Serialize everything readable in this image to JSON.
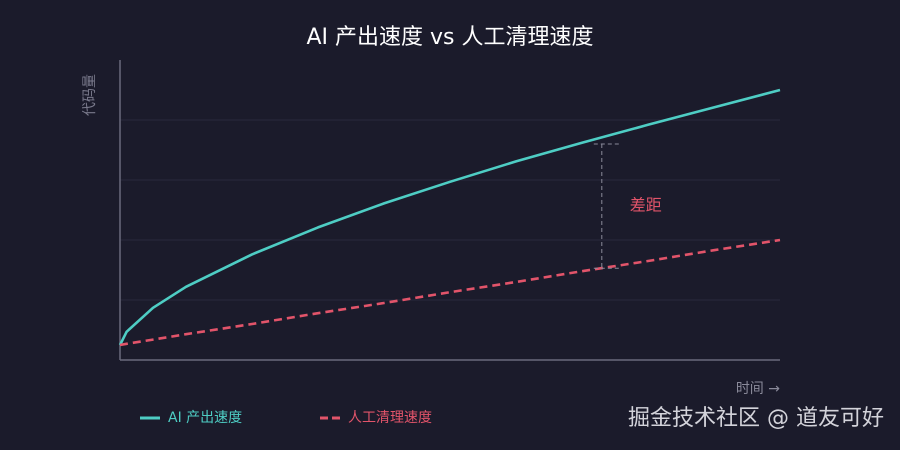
{
  "chart_data": {
    "type": "line",
    "title": "AI 产出速度 vs 人工清理速度",
    "xlabel": "时间 →",
    "ylabel": "代码量",
    "x": [
      0,
      0.1,
      0.5,
      1,
      2,
      3,
      4,
      5,
      6,
      7,
      8,
      9,
      10
    ],
    "xlim": [
      0,
      10
    ],
    "ylim": [
      0,
      5
    ],
    "gridlines": [
      1,
      2,
      3,
      4
    ],
    "series": [
      {
        "name": "AI 产出速度",
        "color": "#4ecdc4",
        "dash": false,
        "values": [
          0.25,
          0.47,
          0.87,
          1.22,
          1.76,
          2.21,
          2.61,
          2.97,
          3.31,
          3.62,
          3.92,
          4.21,
          4.5
        ]
      },
      {
        "name": "人工清理速度",
        "color": "#e2546a",
        "dash": true,
        "values": [
          0.25,
          0.27,
          0.34,
          0.43,
          0.6,
          0.78,
          0.95,
          1.13,
          1.3,
          1.48,
          1.65,
          1.83,
          2.0
        ]
      }
    ],
    "gap": {
      "x": 7.3,
      "low": 1.53,
      "high": 3.6,
      "label": "差距"
    },
    "watermark": "掘金技术社区 @ 道友可好"
  }
}
